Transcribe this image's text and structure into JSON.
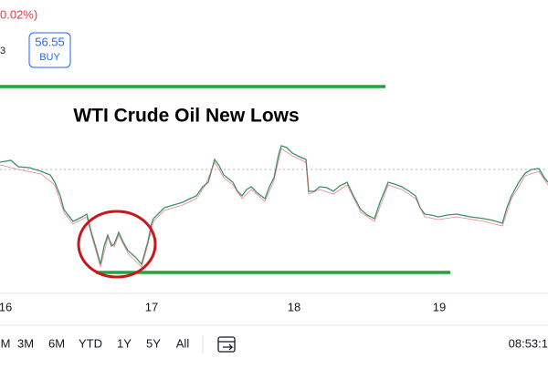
{
  "header": {
    "change": "0.02%)",
    "symbol_fragment": "3",
    "buy_price": "56.55",
    "buy_label": "BUY"
  },
  "annotation": {
    "title": "WTI Crude Oil New Lows"
  },
  "x_axis": {
    "labels": [
      "16",
      "17",
      "18",
      "19"
    ]
  },
  "toolbar": {
    "ranges": [
      "M",
      "3M",
      "6M",
      "YTD",
      "1Y",
      "5Y",
      "All"
    ],
    "time": "08:53:1"
  }
}
